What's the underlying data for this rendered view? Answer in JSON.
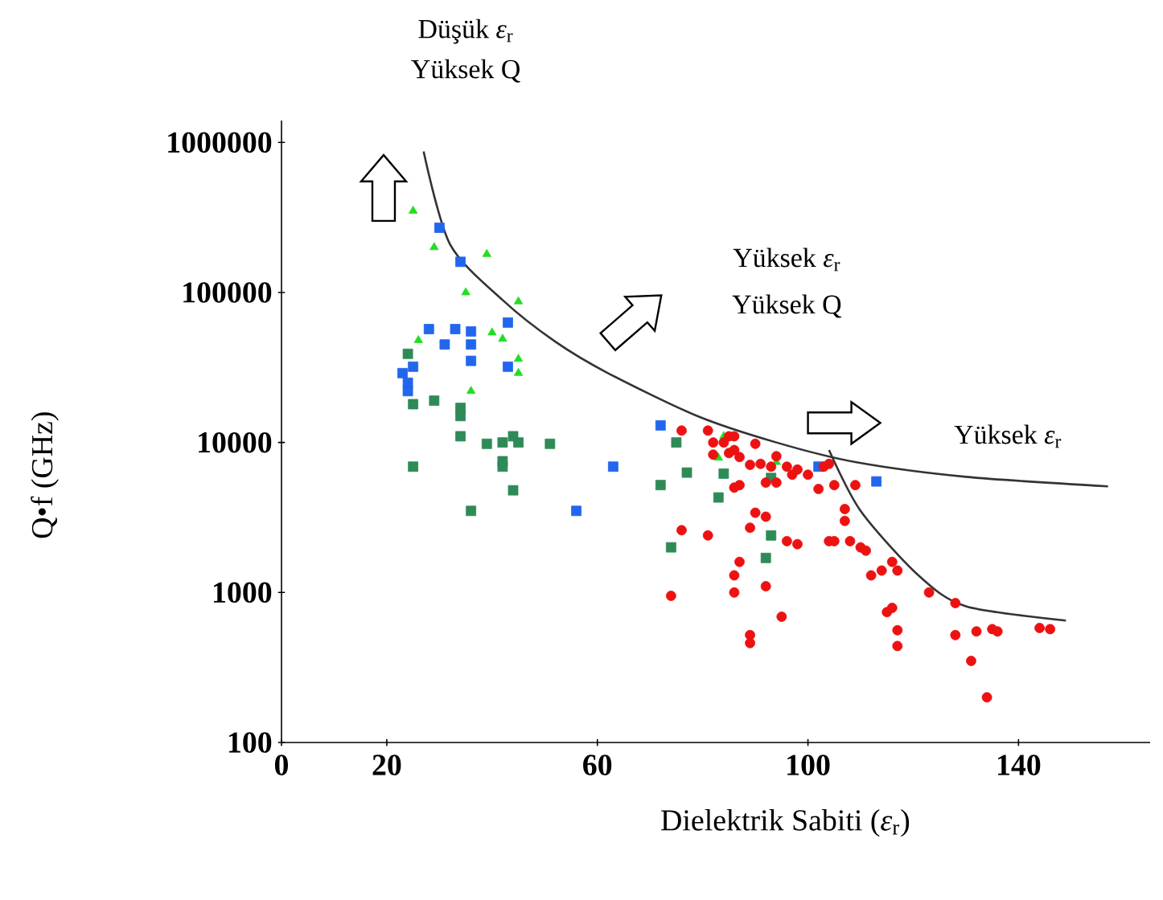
{
  "chart_data": {
    "type": "scatter",
    "xlabel": "Dielektrik  Sabiti (*ε*$_{r}$)",
    "ylabel": "Q•f (GHz)",
    "annotations": [
      "Düşük *ε*$_{r}$",
      "Yüksek Q",
      "Yüksek *ε*$_{r}$",
      "Yüksek Q",
      "Yüksek *ε*$_{r}$"
    ],
    "log": "y",
    "xlim": [
      0,
      165
    ],
    "ylim": [
      100,
      1400000
    ],
    "xticks": [
      0,
      20,
      60,
      100,
      140
    ],
    "yticks": [
      100,
      1000,
      10000,
      100000,
      1000000
    ],
    "series": [
      {
        "color": "#22dd22",
        "marker": "triangle",
        "x": [
          25,
          29,
          39,
          35,
          45,
          26,
          40,
          42,
          45,
          45,
          36,
          84,
          83,
          94
        ],
        "values": [
          350000,
          200000,
          180000,
          100000,
          87000,
          48000,
          54000,
          49000,
          36000,
          29000,
          22000,
          11000,
          7900,
          7400
        ]
      },
      {
        "color": "#2266ee",
        "marker": "square",
        "x": [
          30,
          34,
          28,
          33,
          36,
          31,
          36,
          36,
          43,
          43,
          25,
          23,
          24,
          24,
          56,
          72,
          63,
          102,
          113
        ],
        "values": [
          270000,
          160000,
          57000,
          57000,
          55000,
          45000,
          45000,
          35000,
          63000,
          32000,
          32000,
          29000,
          25000,
          22000,
          3500,
          13000,
          6900,
          6900,
          5500
        ]
      },
      {
        "color": "#2e8b57",
        "marker": "square",
        "x": [
          24,
          25,
          29,
          34,
          34,
          34,
          44,
          43,
          42,
          45,
          39,
          51,
          42,
          42,
          25,
          44,
          36,
          75,
          77,
          72,
          83,
          84,
          93,
          74,
          93,
          92
        ],
        "values": [
          39000,
          18000,
          19000,
          17000,
          15000,
          11000,
          11000,
          null,
          10000,
          10000,
          9800,
          9800,
          7500,
          6900,
          6900,
          4800,
          3500,
          10000,
          6300,
          5200,
          4300,
          6200,
          5800,
          2000,
          2400,
          1700
        ]
      },
      {
        "color": "#ee1111",
        "marker": "circle",
        "x": [
          76,
          81,
          82,
          84,
          85,
          86,
          90,
          82,
          85,
          86,
          87,
          89,
          91,
          93,
          94,
          96,
          98,
          100,
          103,
          104,
          105,
          109,
          102,
          97,
          94,
          92,
          86,
          87,
          90,
          92,
          76,
          81,
          89,
          96,
          98,
          104,
          105,
          108,
          110,
          111,
          107,
          107,
          87,
          86,
          86,
          92,
          74,
          95,
          89,
          89,
          112,
          114,
          116,
          117,
          115,
          116,
          117,
          117,
          123,
          128,
          128,
          132,
          135,
          136,
          144,
          146,
          131,
          134
        ],
        "values": [
          12000,
          12000,
          10000,
          10000,
          11000,
          11000,
          9800,
          8300,
          8500,
          8900,
          8000,
          7100,
          7200,
          6900,
          8100,
          6900,
          6600,
          6100,
          6900,
          7200,
          5200,
          5200,
          4900,
          6100,
          5400,
          5400,
          5000,
          5200,
          3400,
          3200,
          2600,
          2400,
          2700,
          2200,
          2100,
          2200,
          2200,
          2200,
          2000,
          1900,
          3600,
          3000,
          1600,
          1300,
          1000,
          1100,
          950,
          690,
          520,
          460,
          1300,
          1400,
          1600,
          1400,
          740,
          790,
          560,
          440,
          1000,
          850,
          520,
          550,
          570,
          550,
          580,
          570,
          350,
          200
        ]
      },
      {
        "type": "line",
        "color": "#333333",
        "marker": "none",
        "x": [
          27,
          32,
          42,
          52,
          62,
          79,
          94,
          109,
          130,
          157
        ],
        "values": [
          870000,
          210000,
          89000,
          47000,
          29000,
          15000,
          10000,
          7400,
          5900,
          5100
        ]
      },
      {
        "type": "line",
        "color": "#333333",
        "marker": "none",
        "x": [
          104,
          110,
          121,
          130,
          149
        ],
        "values": [
          8900,
          3500,
          1300,
          810,
          650
        ]
      }
    ]
  }
}
